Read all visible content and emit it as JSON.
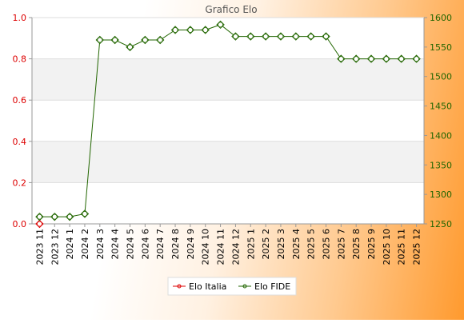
{
  "chart_data": {
    "type": "line",
    "title": "Grafico Elo",
    "categories": [
      "2023 11",
      "2023 12",
      "2024 1",
      "2024 2",
      "2024 3",
      "2024 4",
      "2024 5",
      "2024 6",
      "2024 7",
      "2024 8",
      "2024 9",
      "2024 10",
      "2024 11",
      "2024 12",
      "2025 1",
      "2025 2",
      "2025 3",
      "2025 4",
      "2025 5",
      "2025 6",
      "2025 7",
      "2025 8",
      "2025 9",
      "2025 10",
      "2025 11",
      "2025 12"
    ],
    "y_left": {
      "range": [
        0,
        1
      ],
      "ticks": [
        "0.0",
        "0.2",
        "0.4",
        "0.6",
        "0.8",
        "1.0"
      ],
      "color": "#dd0000"
    },
    "y_right": {
      "range": [
        1250,
        1600
      ],
      "ticks": [
        "1250",
        "1300",
        "1350",
        "1400",
        "1450",
        "1500",
        "1550",
        "1600"
      ],
      "color": "#226600"
    },
    "grid": true,
    "legend_position": "bottom-center",
    "series": [
      {
        "name": "Elo Italia",
        "axis": "left",
        "color": "#dd0000",
        "values": [
          0,
          null,
          null,
          null,
          null,
          null,
          null,
          null,
          null,
          null,
          null,
          null,
          null,
          null,
          null,
          null,
          null,
          null,
          null,
          null,
          null,
          null,
          null,
          null,
          null,
          null
        ]
      },
      {
        "name": "Elo FIDE",
        "axis": "right",
        "color": "#226600",
        "values": [
          1262,
          1262,
          1262,
          1267,
          1562,
          1562,
          1550,
          1562,
          1562,
          1579,
          1579,
          1579,
          1588,
          1568,
          1568,
          1568,
          1568,
          1568,
          1568,
          1568,
          1530,
          1530,
          1530,
          1530,
          1530,
          1530
        ]
      }
    ]
  }
}
